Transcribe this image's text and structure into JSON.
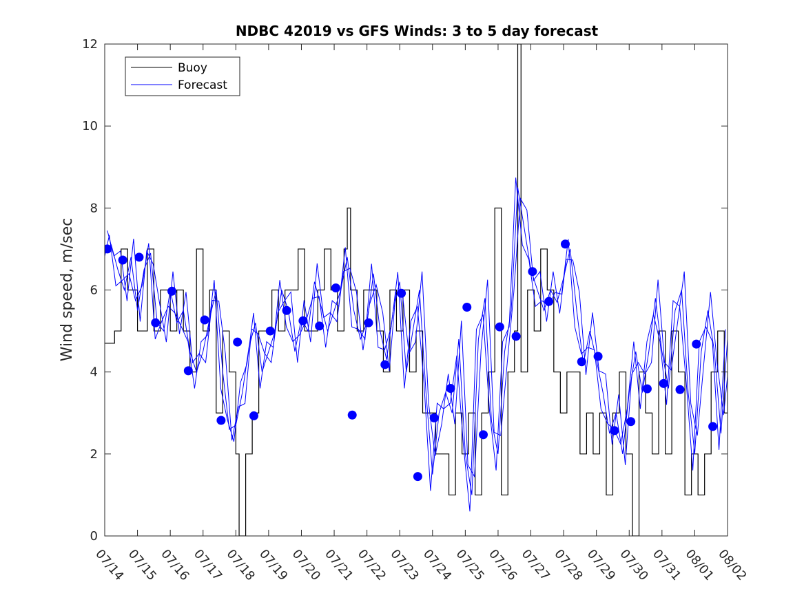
{
  "chart_data": {
    "type": "line",
    "title": "NDBC 42019 vs GFS Winds: 3 to 5 day forecast",
    "xlabel": "",
    "ylabel": "Wind speed, m/sec",
    "x_tick_labels": [
      "07/14",
      "07/15",
      "07/16",
      "07/17",
      "07/18",
      "07/19",
      "07/20",
      "07/21",
      "07/22",
      "07/23",
      "07/24",
      "07/25",
      "07/26",
      "07/27",
      "07/28",
      "07/29",
      "07/30",
      "07/31",
      "08/01",
      "08/02"
    ],
    "y_ticks": [
      0,
      2,
      4,
      6,
      8,
      10,
      12
    ],
    "ylim": [
      0,
      12
    ],
    "xlim_days": [
      0,
      19
    ],
    "grid": false,
    "legend": {
      "placement": "top-left",
      "entries": [
        "Buoy",
        "Forecast"
      ]
    },
    "colors": {
      "buoy": "#000000",
      "forecast": "#0000ff"
    },
    "buoy": {
      "name": "Buoy",
      "x_days": [
        0,
        0.3,
        0.5,
        0.7,
        0.8,
        1.0,
        1.3,
        1.5,
        1.7,
        2.0,
        2.2,
        2.4,
        2.6,
        2.8,
        3.0,
        3.2,
        3.4,
        3.6,
        3.8,
        4.0,
        4.1,
        4.3,
        4.5,
        4.7,
        4.9,
        5.1,
        5.3,
        5.5,
        5.7,
        5.9,
        6.1,
        6.3,
        6.5,
        6.7,
        6.9,
        7.1,
        7.3,
        7.4,
        7.5,
        7.7,
        7.9,
        8.1,
        8.3,
        8.5,
        8.7,
        8.9,
        9.1,
        9.3,
        9.5,
        9.7,
        9.9,
        10.1,
        10.3,
        10.5,
        10.7,
        10.9,
        11.1,
        11.3,
        11.5,
        11.7,
        11.9,
        12.1,
        12.3,
        12.5,
        12.6,
        12.7,
        12.9,
        13.1,
        13.3,
        13.5,
        13.7,
        13.9,
        14.1,
        14.3,
        14.5,
        14.7,
        14.9,
        15.1,
        15.3,
        15.5,
        15.7,
        15.9,
        16.1,
        16.3,
        16.5,
        16.7,
        16.9,
        17.1,
        17.3,
        17.5,
        17.7,
        17.9,
        18.1,
        18.3,
        18.5,
        18.7,
        18.9,
        19.0
      ],
      "values": [
        4.7,
        5,
        7,
        6,
        6,
        5,
        7,
        5,
        6,
        5,
        6,
        5,
        4,
        7,
        5,
        6,
        3,
        5,
        4,
        2,
        0,
        2,
        3,
        5,
        5,
        6,
        5,
        6,
        6,
        7,
        5,
        5,
        6,
        7,
        6,
        5,
        7,
        8,
        6,
        5,
        6,
        6,
        5,
        4,
        6,
        5,
        6,
        4,
        5,
        3,
        3,
        2,
        2,
        1,
        3,
        2,
        3,
        1,
        3,
        4,
        8,
        1,
        4,
        5,
        12,
        4,
        6,
        5,
        7,
        6,
        4,
        3,
        4,
        4,
        2,
        3,
        2,
        3,
        1,
        3,
        4,
        2,
        0,
        4,
        3,
        2,
        5,
        2,
        5,
        4,
        1,
        2,
        1,
        2,
        4,
        5,
        3,
        4
      ]
    },
    "forecast": {
      "name": "Forecast",
      "x_days": [
        0,
        0.2,
        0.4,
        0.6,
        0.8,
        1.0,
        1.2,
        1.4,
        1.6,
        1.8,
        2.0,
        2.2,
        2.4,
        2.6,
        2.8,
        3.0,
        3.2,
        3.4,
        3.6,
        3.8,
        4.0,
        4.2,
        4.4,
        4.6,
        4.8,
        5.0,
        5.2,
        5.4,
        5.6,
        5.8,
        6.0,
        6.2,
        6.4,
        6.6,
        6.8,
        7.0,
        7.2,
        7.4,
        7.6,
        7.8,
        8.0,
        8.2,
        8.4,
        8.6,
        8.8,
        9.0,
        9.2,
        9.4,
        9.6,
        9.8,
        10.0,
        10.2,
        10.4,
        10.6,
        10.8,
        11.0,
        11.2,
        11.4,
        11.6,
        11.8,
        12.0,
        12.2,
        12.4,
        12.6,
        12.8,
        13.0,
        13.2,
        13.4,
        13.6,
        13.8,
        14.0,
        14.2,
        14.4,
        14.6,
        14.8,
        15.0,
        15.2,
        15.4,
        15.6,
        15.8,
        16.0,
        16.2,
        16.4,
        16.6,
        16.8,
        17.0,
        17.2,
        17.4,
        17.6,
        17.8,
        18.0,
        18.2,
        18.4,
        18.6,
        18.8,
        19.0
      ],
      "values": [
        7.0,
        7.1,
        6.5,
        6.0,
        6.8,
        5.5,
        6.5,
        6.9,
        5.2,
        5.0,
        6.0,
        5.2,
        5.5,
        4.5,
        4.0,
        4.5,
        5.3,
        6.0,
        4.0,
        2.6,
        2.7,
        3.5,
        4.6,
        5.2,
        4.0,
        4.5,
        5.0,
        6.0,
        5.5,
        4.5,
        5.3,
        5.0,
        6.2,
        5.6,
        5.0,
        5.5,
        6.0,
        6.8,
        5.5,
        4.8,
        5.2,
        6.4,
        5.0,
        4.3,
        5.5,
        6.2,
        4.0,
        5.0,
        6.0,
        3.5,
        1.5,
        3.0,
        3.5,
        3.0,
        4.8,
        2.0,
        1.0,
        4.8,
        5.8,
        2.8,
        2.0,
        4.5,
        5.5,
        8.5,
        7.5,
        6.5,
        6.0,
        5.5,
        6.0,
        5.7,
        6.3,
        7.0,
        5.5,
        4.2,
        5.0,
        4.3,
        3.5,
        2.5,
        3.0,
        2.0,
        3.5,
        4.5,
        3.5,
        4.5,
        5.8,
        4.5,
        3.6,
        5.5,
        6.0,
        3.5,
        2.0,
        4.5,
        5.5,
        4.5,
        2.5,
        4.8
      ]
    },
    "forecast_markers": {
      "name": "Forecast",
      "x_days": [
        0.08,
        0.55,
        1.05,
        1.55,
        2.05,
        2.55,
        3.05,
        3.55,
        4.05,
        4.55,
        5.05,
        5.55,
        6.05,
        6.55,
        7.05,
        7.55,
        8.05,
        8.55,
        9.05,
        9.55,
        10.05,
        10.55,
        11.05,
        11.55,
        12.05,
        12.55,
        13.05,
        13.55,
        14.05,
        14.55,
        15.05,
        15.55,
        16.05,
        16.55,
        17.05,
        17.55,
        18.05,
        18.55
      ],
      "values": [
        7.0,
        6.73,
        6.8,
        5.2,
        5.97,
        4.03,
        5.27,
        2.82,
        4.73,
        2.93,
        5.0,
        5.5,
        5.25,
        5.12,
        6.05,
        2.95,
        5.2,
        4.18,
        5.92,
        1.45,
        2.88,
        3.6,
        5.58,
        2.47,
        5.1,
        4.87,
        6.45,
        5.72,
        7.12,
        4.25,
        4.38,
        2.57,
        2.79,
        3.59,
        3.72,
        3.57,
        4.68,
        2.67
      ]
    }
  }
}
